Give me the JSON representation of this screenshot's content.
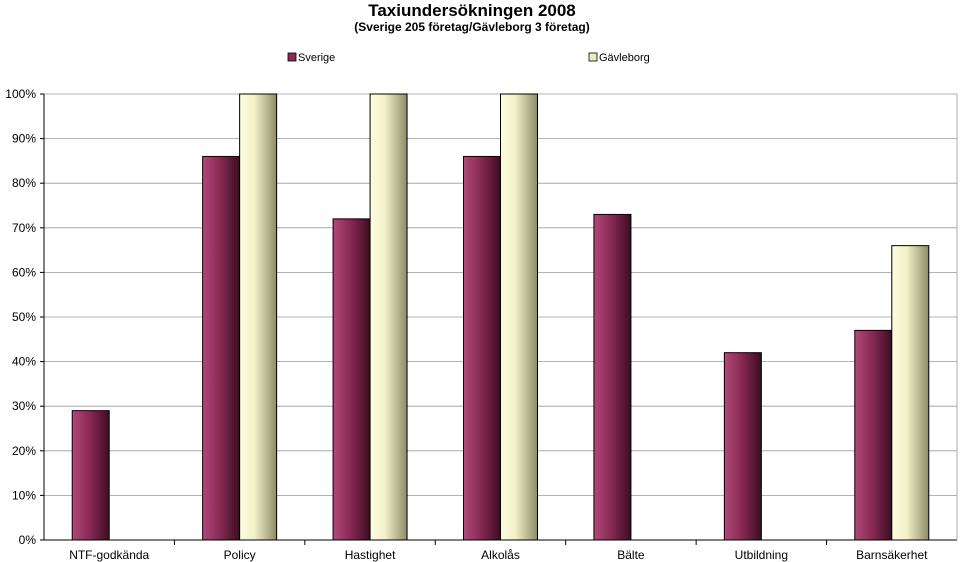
{
  "chart_data": {
    "type": "bar",
    "title": "Taxiundersökningen 2008",
    "subtitle": "(Sverige 205 företag/Gävleborg 3 företag)",
    "categories": [
      "NTF-godkända",
      "Policy",
      "Hastighet",
      "Alkolås",
      "Bälte",
      "Utbildning",
      "Barnsäkerhet"
    ],
    "series": [
      {
        "name": "Sverige",
        "values": [
          29,
          86,
          72,
          86,
          73,
          42,
          47
        ],
        "color": "#8b2a55"
      },
      {
        "name": "Gävleborg",
        "values": [
          null,
          100,
          100,
          100,
          null,
          null,
          66
        ],
        "color": "#ecebc0"
      }
    ],
    "yticks": [
      "0%",
      "10%",
      "20%",
      "30%",
      "40%",
      "50%",
      "60%",
      "70%",
      "80%",
      "90%",
      "100%"
    ],
    "ylim": [
      0,
      100
    ],
    "grid": true,
    "legend": "top"
  }
}
